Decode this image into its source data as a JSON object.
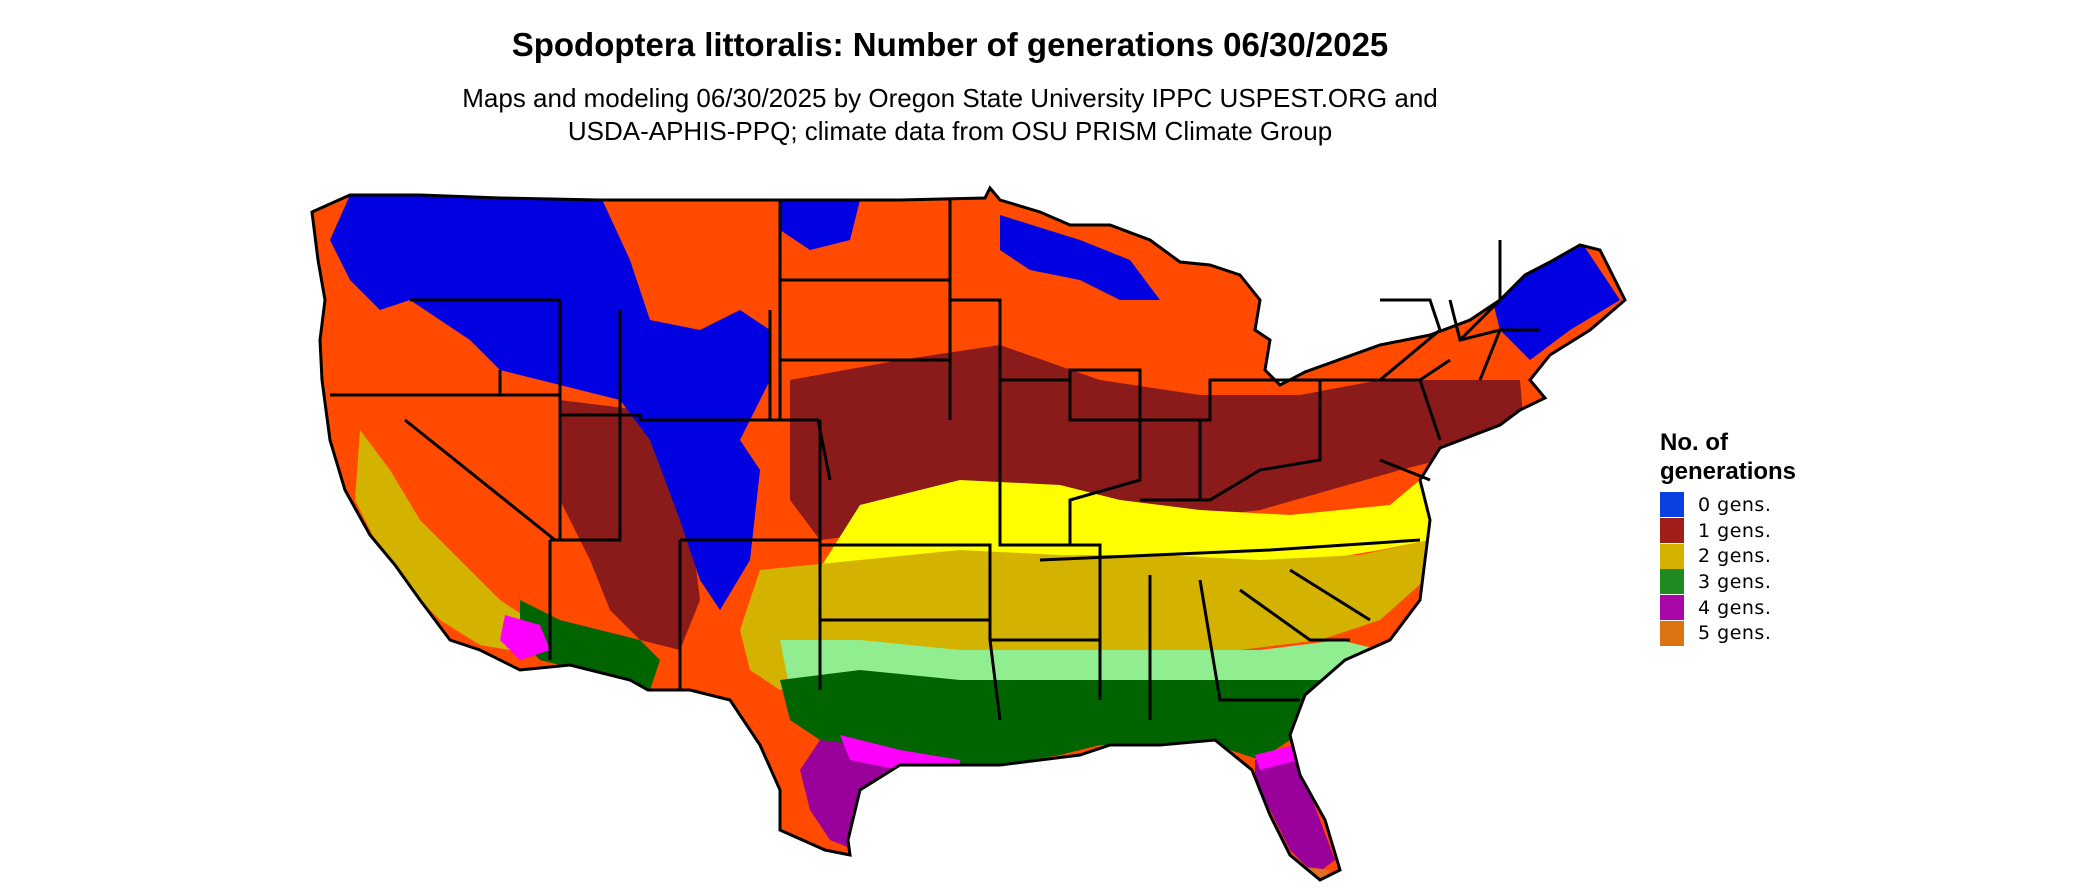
{
  "title": "Spodoptera littoralis: Number of generations 06/30/2025",
  "subtitle_line1": "Maps and modeling 06/30/2025 by Oregon State University IPPC USPEST.ORG and",
  "subtitle_line2": "USDA-APHIS-PPQ; climate data from OSU PRISM Climate Group",
  "legend": {
    "title_line1": "No. of",
    "title_line2": "generations",
    "items": [
      {
        "label": "0 gens.",
        "color": "#0a3fe0"
      },
      {
        "label": "1 gens.",
        "color": "#a01e18"
      },
      {
        "label": "2 gens.",
        "color": "#d4b300"
      },
      {
        "label": "3 gens.",
        "color": "#1f8a1f"
      },
      {
        "label": "4 gens.",
        "color": "#a808a8"
      },
      {
        "label": "5 gens.",
        "color": "#dc7414"
      }
    ]
  },
  "map_colors": {
    "zero": "#0000e0",
    "one_light": "#ff4a00",
    "one_dark": "#8b1a1a",
    "two_light": "#ffff00",
    "two_dark": "#d4b300",
    "three_light": "#90ee90",
    "three_dark": "#006400",
    "four_light": "#ff00ff",
    "four_dark": "#9a009a",
    "five": "#e07020",
    "borders": "#000000"
  }
}
